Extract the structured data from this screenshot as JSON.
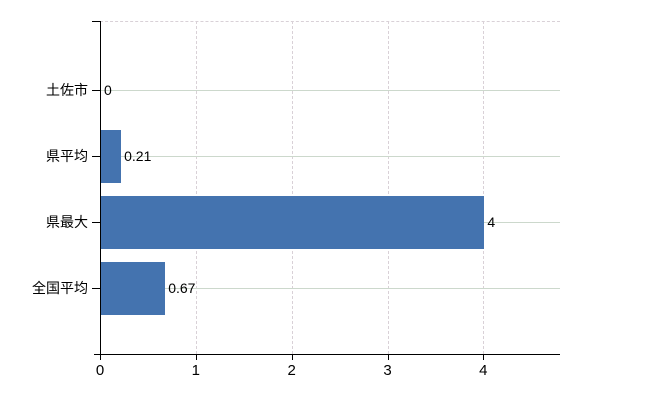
{
  "window": {
    "background": "#ffffff"
  },
  "chart_data": {
    "type": "bar",
    "orientation": "horizontal",
    "categories": [
      "土佐市",
      "県平均",
      "県最大",
      "全国平均"
    ],
    "values": [
      0,
      0.21,
      4,
      0.67
    ],
    "value_labels": [
      "0",
      "0.21",
      "4",
      "0.67"
    ],
    "x_tick_labels": [
      "0",
      "1",
      "2",
      "3",
      "4"
    ],
    "x_tick_values": [
      0,
      1,
      2,
      3,
      4
    ],
    "xlim": [
      0,
      4.8
    ],
    "legend": "none",
    "grid": {
      "horizontal": "solid",
      "vertical": "dashed",
      "top_border": "dashed"
    },
    "colors": {
      "bar": "#4473af",
      "h_gridline": "#ccd8cc",
      "v_gridline": "#d9d1d7",
      "axis": "#000000",
      "text": "#000000",
      "background": "#ffffff"
    }
  }
}
